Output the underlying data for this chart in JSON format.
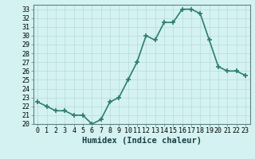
{
  "x": [
    0,
    1,
    2,
    3,
    4,
    5,
    6,
    7,
    8,
    9,
    10,
    11,
    12,
    13,
    14,
    15,
    16,
    17,
    18,
    19,
    20,
    21,
    22,
    23
  ],
  "y": [
    22.5,
    22.0,
    21.5,
    21.5,
    21.0,
    21.0,
    20.0,
    20.5,
    22.5,
    23.0,
    25.0,
    27.0,
    30.0,
    29.5,
    31.5,
    31.5,
    33.0,
    33.0,
    32.5,
    29.5,
    26.5,
    26.0,
    26.0,
    25.5
  ],
  "line_color": "#2e7d6e",
  "marker": "+",
  "markersize": 4,
  "markeredgewidth": 1.2,
  "bg_color": "#d4f2f2",
  "grid_color": "#b8dada",
  "xlabel": "Humidex (Indice chaleur)",
  "xlim": [
    -0.5,
    23.5
  ],
  "ylim": [
    20,
    33.5
  ],
  "yticks": [
    20,
    21,
    22,
    23,
    24,
    25,
    26,
    27,
    28,
    29,
    30,
    31,
    32,
    33
  ],
  "xticks": [
    0,
    1,
    2,
    3,
    4,
    5,
    6,
    7,
    8,
    9,
    10,
    11,
    12,
    13,
    14,
    15,
    16,
    17,
    18,
    19,
    20,
    21,
    22,
    23
  ],
  "tick_fontsize": 6,
  "label_fontsize": 7.5,
  "linewidth": 1.2,
  "spine_color": "#608080"
}
